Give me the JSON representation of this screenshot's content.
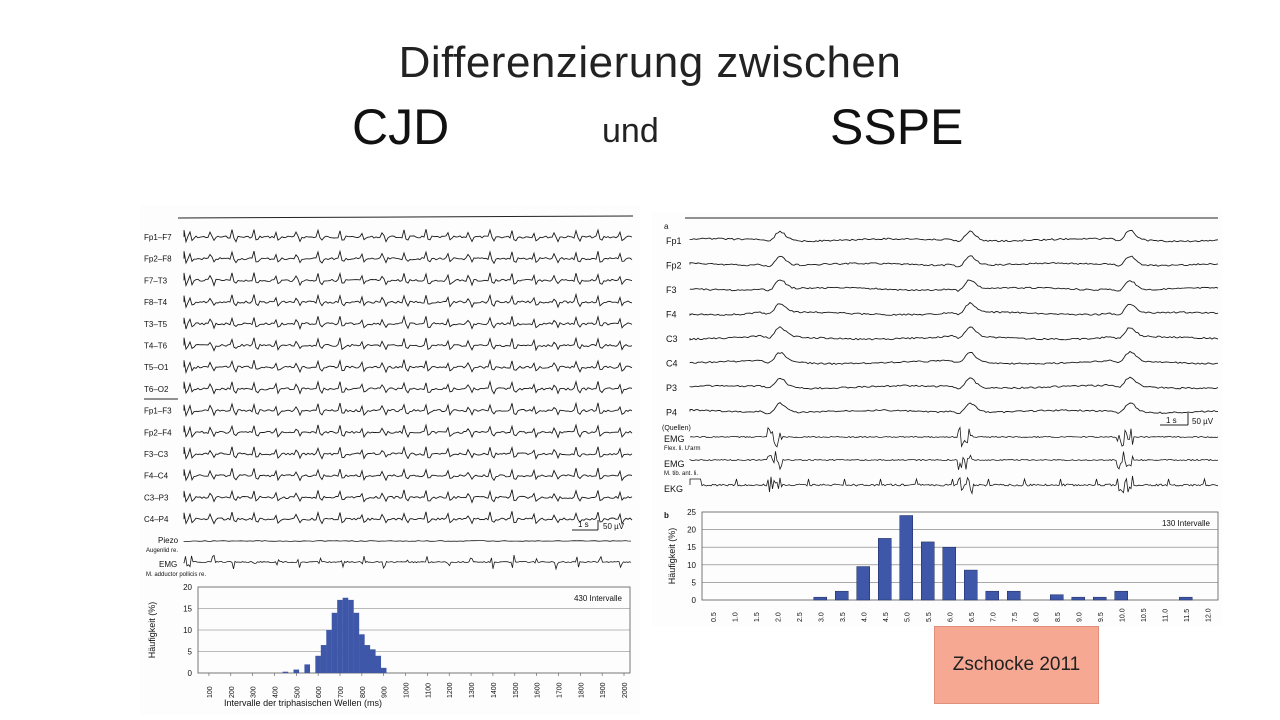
{
  "slide": {
    "title_line1": "Differenzierung zwischen",
    "title_cjd": "CJD",
    "title_und": "und",
    "title_sspe": "SSPE",
    "citation": "Zschocke 2011"
  },
  "cjd_panel": {
    "channels": [
      "Fp1–F7",
      "Fp2–F8",
      "F7–T3",
      "F8–T4",
      "T3–T5",
      "T4–T6",
      "T5–O1",
      "T6–O2",
      "Fp1–F3",
      "Fp2–F4",
      "F3–C3",
      "F4–C4",
      "C3–P3",
      "C4–P4"
    ],
    "piezo_label": "Piezo",
    "piezo_sub": "Augenlid re.",
    "emg_label": "EMG",
    "emg_sub": "M. adductor pollicis re.",
    "scale_time": "1 s",
    "scale_amp": "50 µV"
  },
  "sspe_panel": {
    "panel_a": "a",
    "panel_b": "b",
    "channels": [
      "Fp1",
      "Fp2",
      "F3",
      "F4",
      "C3",
      "C4",
      "P3",
      "P4"
    ],
    "quellen": "(Quellen)",
    "emg1_label": "EMG",
    "emg1_sub": "Flex. li. U'arm",
    "emg2_label": "EMG",
    "emg2_sub": "M. tib. ant. li.",
    "ekg_label": "EKG",
    "scale_time": "1 s",
    "scale_amp": "50 µV"
  },
  "colors": {
    "bar": "#3e57a8",
    "grid": "#777777",
    "citation_bg": "#f6a893"
  },
  "chart_data": [
    {
      "type": "bar",
      "title": "",
      "annotation": "430 Intervalle",
      "xlabel": "Intervalle der triphasischen Wellen (ms)",
      "ylabel": "Häufigkeit (%)",
      "ylim": [
        0,
        20
      ],
      "yticks": [
        "0",
        "5",
        "10",
        "15",
        "20"
      ],
      "xticks": [
        "100",
        "200",
        "300",
        "400",
        "500",
        "600",
        "700",
        "800",
        "900",
        "1000",
        "1100",
        "1200",
        "1300",
        "1400",
        "1500",
        "1600",
        "1700",
        "1800",
        "1900",
        "2000"
      ],
      "x": [
        450,
        500,
        550,
        600,
        625,
        650,
        675,
        700,
        725,
        750,
        775,
        800,
        825,
        850,
        875,
        900
      ],
      "values": [
        0.3,
        0.8,
        2,
        4,
        6.5,
        10,
        14,
        17,
        17.5,
        17,
        14,
        9,
        6.5,
        5.5,
        4,
        1.2
      ]
    },
    {
      "type": "bar",
      "title": "",
      "annotation": "130 Intervalle",
      "xlabel": "",
      "ylabel": "Häufigkeit (%)",
      "ylim": [
        0,
        25
      ],
      "yticks": [
        "0",
        "5",
        "10",
        "15",
        "20",
        "25"
      ],
      "categories": [
        "0.5",
        "1.0",
        "1.5",
        "2.0",
        "2.5",
        "3.0",
        "3.5",
        "4.0",
        "4.5",
        "5.0",
        "5.5",
        "6.0",
        "6.5",
        "7.0",
        "7.5",
        "8.0",
        "8.5",
        "9.0",
        "9.5",
        "10.0",
        "10.5",
        "11.0",
        "11.5",
        "12.0"
      ],
      "values": [
        0,
        0,
        0,
        0,
        0,
        0.8,
        2.5,
        9.5,
        17.5,
        24,
        16.5,
        15,
        8.5,
        2.5,
        2.5,
        0,
        1.5,
        0.8,
        0.8,
        2.5,
        0,
        0,
        0.8,
        0
      ]
    }
  ]
}
